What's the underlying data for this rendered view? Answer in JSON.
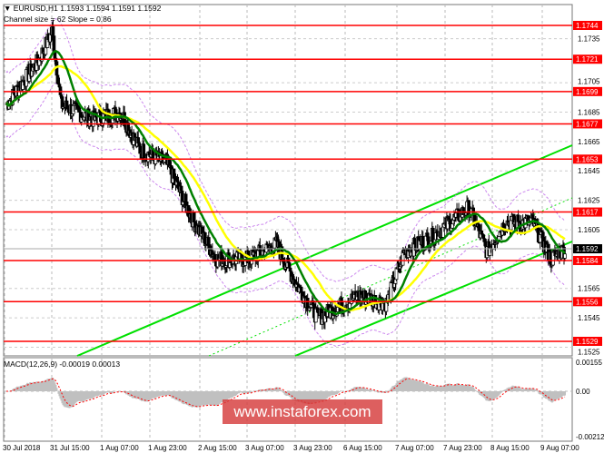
{
  "header": {
    "symbol_line": "▼ EURUSD,H1  1.1593 1.1594 1.1591 1.1592",
    "indicator_line": "Channel size = 62 Slope = 0.86"
  },
  "macd": {
    "label": "MACD(12,26,9) -0.00019 0.00013",
    "ticks": [
      "0.00155",
      "0.00",
      "-0.00212"
    ]
  },
  "watermark": "www.instaforex.com",
  "colors": {
    "level": "#ff0000",
    "channel": "#00e000",
    "ma_fast": "#008000",
    "ma_slow": "#ffff00",
    "bands": "#cc88ee",
    "signal": "#ff0000",
    "hist": "#c0c0c0"
  },
  "chart_data": {
    "type": "candlestick",
    "symbol": "EURUSD",
    "timeframe": "H1",
    "ylim": [
      1.152,
      1.1755
    ],
    "price_ticks": [
      "1.1735",
      "1.1705",
      "1.1685",
      "1.1665",
      "1.1645",
      "1.1625",
      "1.1605",
      "1.1565",
      "1.1545",
      "1.1525"
    ],
    "levels": [
      "1.1744",
      "1.1721",
      "1.1699",
      "1.1677",
      "1.1653",
      "1.1617",
      "1.1584",
      "1.1556",
      "1.1529"
    ],
    "current_price": "1.1592",
    "x_labels": [
      "30 Jul 2018",
      "31 Jul 15:00",
      "1 Aug 07:00",
      "1 Aug 23:00",
      "2 Aug 15:00",
      "3 Aug 07:00",
      "3 Aug 23:00",
      "6 Aug 15:00",
      "7 Aug 07:00",
      "7 Aug 23:00",
      "8 Aug 15:00",
      "9 Aug 07:00"
    ],
    "price_path": [
      [
        0,
        1.169
      ],
      [
        7,
        1.172
      ],
      [
        10,
        1.174
      ],
      [
        12,
        1.169
      ],
      [
        19,
        1.168
      ],
      [
        25,
        1.1685
      ],
      [
        29,
        1.166
      ],
      [
        35,
        1.165
      ],
      [
        41,
        1.161
      ],
      [
        46,
        1.1585
      ],
      [
        53,
        1.1585
      ],
      [
        59,
        1.1595
      ],
      [
        63,
        1.157
      ],
      [
        68,
        1.1545
      ],
      [
        71,
        1.155
      ],
      [
        77,
        1.156
      ],
      [
        83,
        1.1555
      ],
      [
        87,
        1.159
      ],
      [
        93,
        1.16
      ],
      [
        101,
        1.162
      ],
      [
        105,
        1.159
      ],
      [
        109,
        1.161
      ],
      [
        115,
        1.161
      ],
      [
        119,
        1.1585
      ],
      [
        122,
        1.1592
      ]
    ]
  }
}
